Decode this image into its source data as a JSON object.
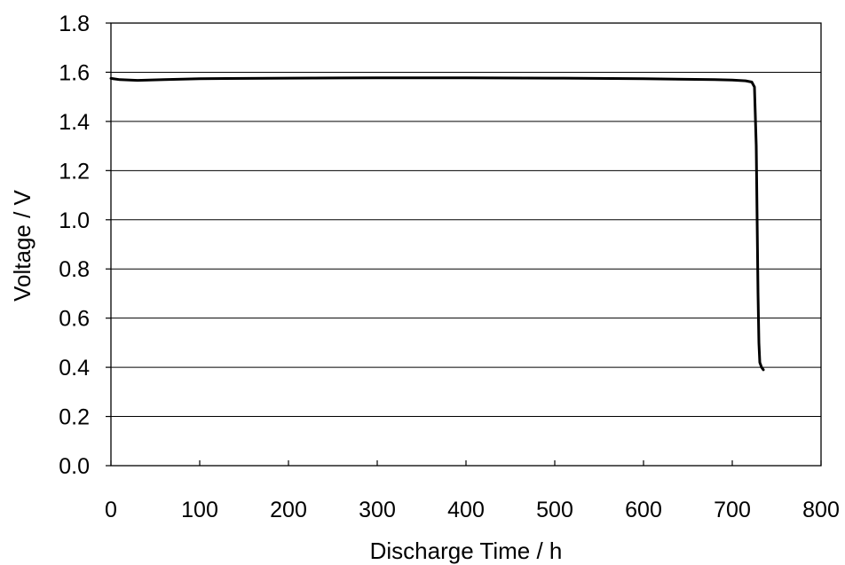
{
  "chart_data": {
    "type": "line",
    "title": "",
    "xlabel": "Discharge Time / h",
    "ylabel": "Voltage / V",
    "xlim": [
      0,
      800
    ],
    "ylim": [
      0.0,
      1.8
    ],
    "x_ticks": [
      0,
      100,
      200,
      300,
      400,
      500,
      600,
      700,
      800
    ],
    "x_tick_labels": [
      "0",
      "100",
      "200",
      "300",
      "400",
      "500",
      "600",
      "700",
      "800"
    ],
    "y_ticks": [
      0.0,
      0.2,
      0.4,
      0.6,
      0.8,
      1.0,
      1.2,
      1.4,
      1.6,
      1.8
    ],
    "y_tick_labels": [
      "0.0",
      "0.2",
      "0.4",
      "0.6",
      "0.8",
      "1.0",
      "1.2",
      "1.4",
      "1.6",
      "1.8"
    ],
    "grid": "horizontal",
    "legend": "none",
    "series": [
      {
        "color": "#000000",
        "x": [
          0,
          10,
          30,
          60,
          100,
          200,
          300,
          400,
          500,
          600,
          680,
          700,
          715,
          722,
          725,
          727,
          728,
          729,
          730,
          731,
          733,
          735
        ],
        "y": [
          1.575,
          1.57,
          1.567,
          1.57,
          1.574,
          1.576,
          1.577,
          1.577,
          1.576,
          1.574,
          1.57,
          1.568,
          1.565,
          1.56,
          1.54,
          1.3,
          1.0,
          0.7,
          0.5,
          0.42,
          0.4,
          0.39
        ]
      }
    ]
  }
}
